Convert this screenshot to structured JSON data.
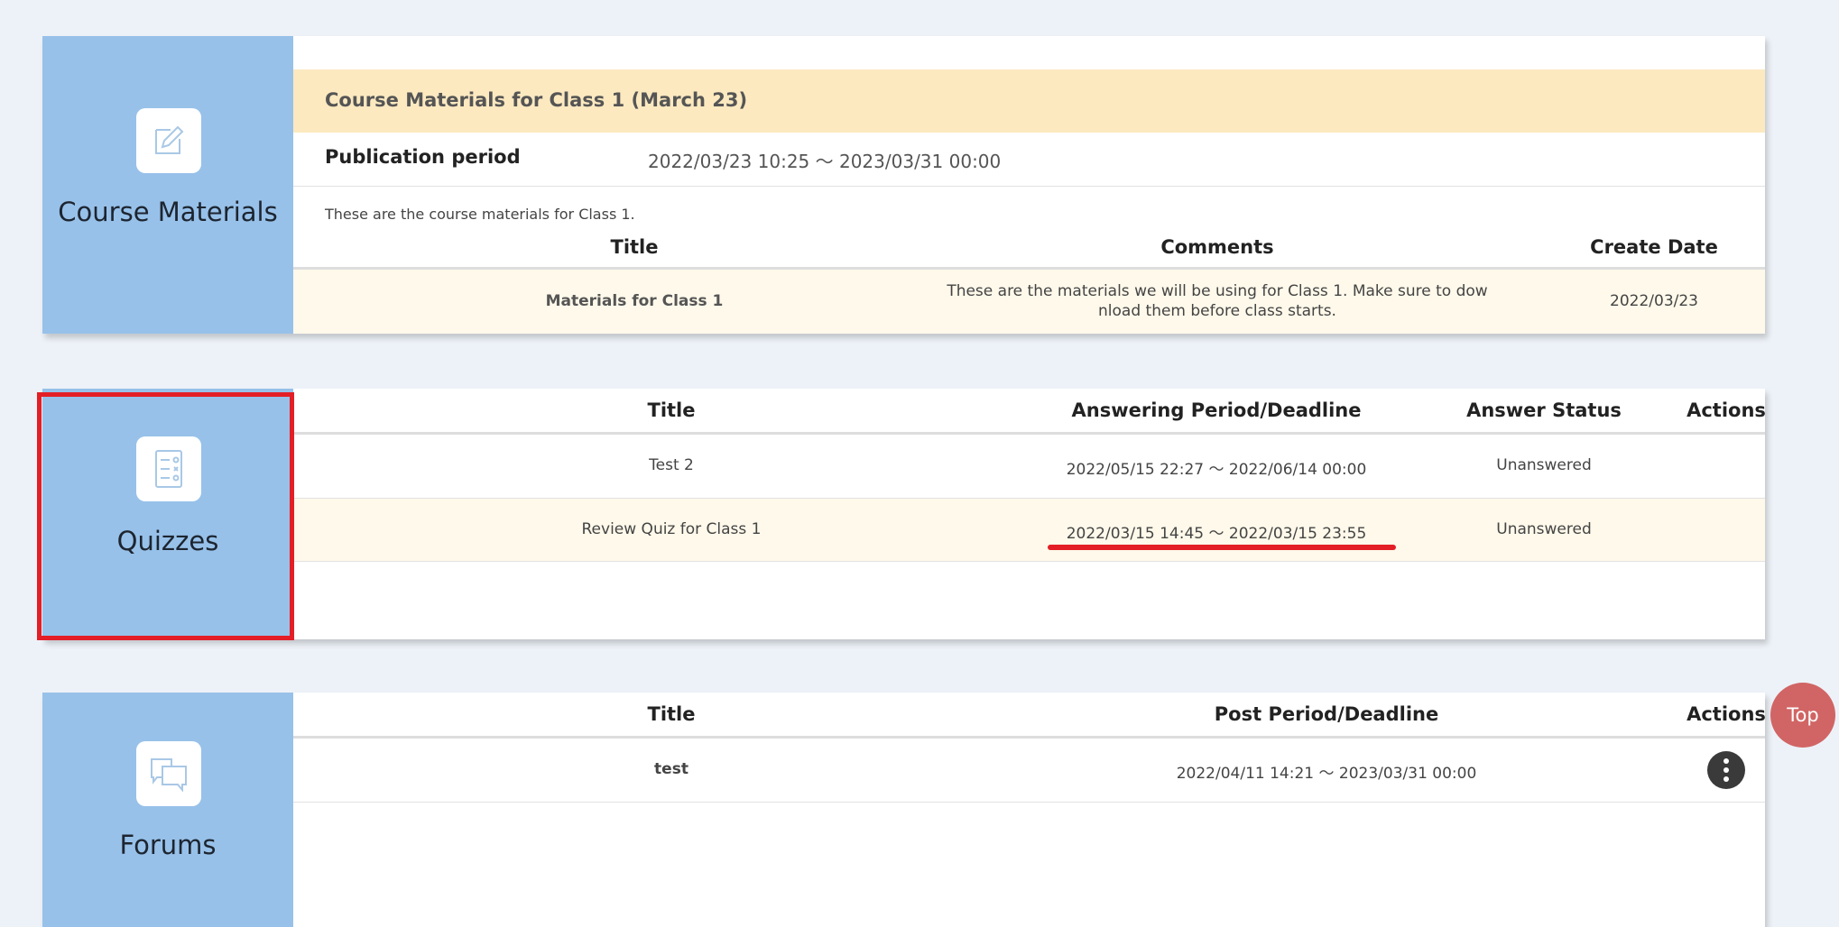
{
  "materials": {
    "label": "Course Materials",
    "icon": "edit-icon",
    "heading": "Course Materials for Class 1 (March 23)",
    "pub_label": "Publication period",
    "pub_value": "2022/03/23 10:25 ～ 2023/03/31 00:00",
    "description": "These are the course materials for Class 1.",
    "columns": [
      "Title",
      "Comments",
      "Create Date"
    ],
    "rows": [
      {
        "title": "Materials for Class 1",
        "comment_line1": "These are the materials we will be using for Class 1. Make sure to dow",
        "comment_line2": "nload them before class starts.",
        "date": "2022/03/23"
      }
    ]
  },
  "quizzes": {
    "label": "Quizzes",
    "icon": "quiz-list-icon",
    "columns": [
      "Title",
      "Answering Period/Deadline",
      "Answer Status",
      "Actions"
    ],
    "rows": [
      {
        "title": "Test 2",
        "period": "2022/05/15 22:27 ～ 2022/06/14 00:00",
        "status": "Unanswered"
      },
      {
        "title": "Review Quiz for Class 1",
        "period": "2022/03/15 14:45 ～ 2022/03/15 23:55",
        "status": "Unanswered"
      }
    ]
  },
  "forums": {
    "label": "Forums",
    "icon": "chat-bubbles-icon",
    "columns": [
      "Title",
      "Post Period/Deadline",
      "Actions"
    ],
    "rows": [
      {
        "title": "test",
        "period": "2022/04/11 14:21 ～ 2023/03/31 00:00"
      }
    ]
  },
  "top_button": "Top",
  "colors": {
    "sidebar": "#97c1e9",
    "heading_bg": "#fce9c0",
    "row_highlight": "#fef9ea",
    "annotation": "#e31e26",
    "top_button": "#d16565"
  }
}
